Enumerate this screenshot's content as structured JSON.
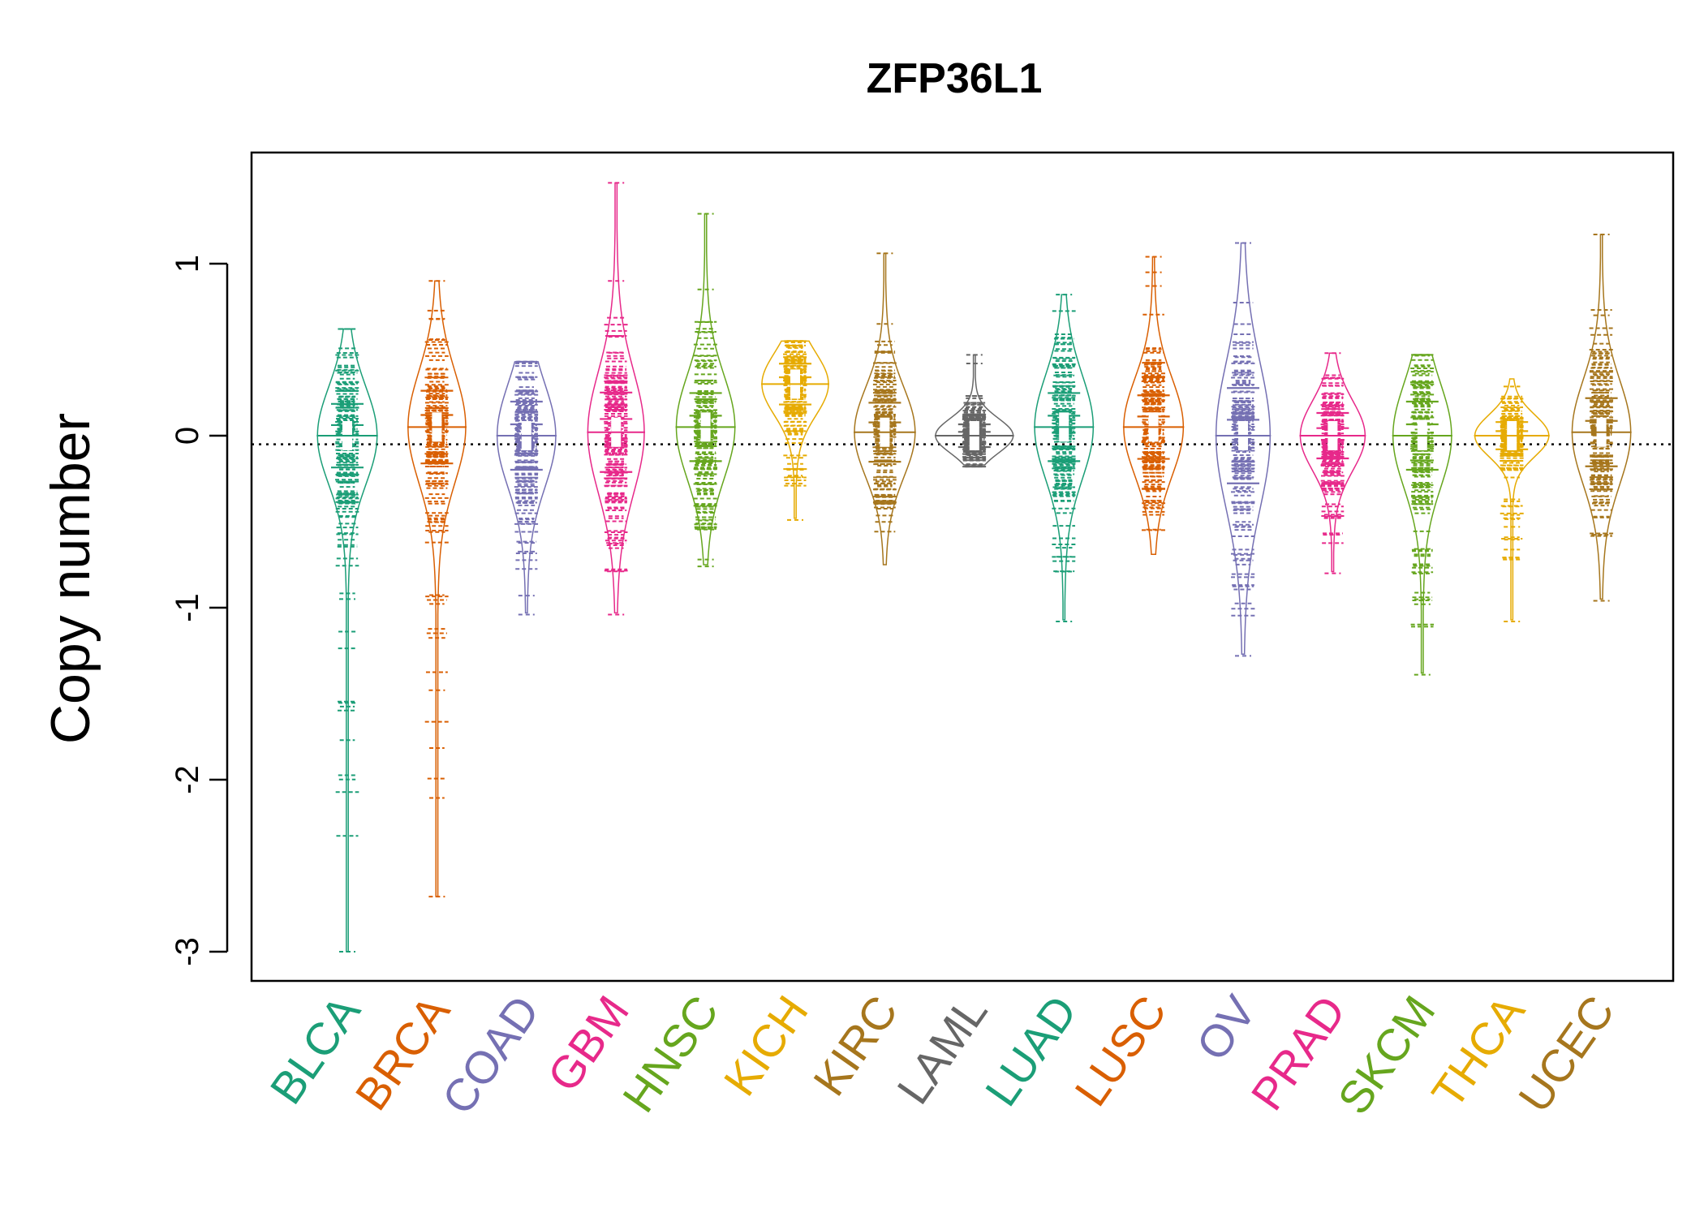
{
  "chart_data": {
    "type": "beanplot",
    "title": "ZFP36L1",
    "xlabel": "",
    "ylabel": "Copy number",
    "ylim": [
      -3.2,
      1.65
    ],
    "yticks": [
      1,
      0,
      -1,
      -2,
      -3
    ],
    "reference_line": -0.05,
    "grid": false,
    "legend": "none",
    "series": [
      {
        "name": "BLCA",
        "color": "#1B9E77",
        "median": 0.0,
        "sd": 0.28,
        "min": -3.0,
        "max": 0.62,
        "outliers": [
          0.62,
          -0.95,
          -3.0
        ]
      },
      {
        "name": "BRCA",
        "color": "#D95F02",
        "median": 0.05,
        "sd": 0.32,
        "min": -2.68,
        "max": 0.9,
        "outliers": [
          0.9,
          0.68,
          -1.48,
          -2.68
        ]
      },
      {
        "name": "COAD",
        "color": "#7570B3",
        "median": 0.0,
        "sd": 0.3,
        "min": -1.04,
        "max": 0.43,
        "outliers": [
          -0.93,
          -1.04
        ]
      },
      {
        "name": "GBM",
        "color": "#E7298A",
        "median": 0.02,
        "sd": 0.35,
        "min": -1.04,
        "max": 1.47,
        "outliers": [
          1.47,
          0.9,
          0.58,
          -1.04
        ]
      },
      {
        "name": "HNSC",
        "color": "#66A61E",
        "median": 0.05,
        "sd": 0.3,
        "min": -0.76,
        "max": 1.29,
        "outliers": [
          1.29,
          0.85,
          -0.72,
          -0.76
        ]
      },
      {
        "name": "KICH",
        "color": "#E6AB02",
        "median": 0.3,
        "sd": 0.18,
        "min": -0.49,
        "max": 0.55,
        "outliers": [
          -0.24,
          -0.49
        ]
      },
      {
        "name": "KIRC",
        "color": "#A6761D",
        "median": 0.02,
        "sd": 0.26,
        "min": -0.76,
        "max": 1.06,
        "outliers": [
          1.06,
          0.65
        ]
      },
      {
        "name": "LAML",
        "color": "#666666",
        "median": 0.0,
        "sd": 0.1,
        "min": -0.18,
        "max": 0.47,
        "outliers": [
          0.47,
          0.42,
          -0.18
        ]
      },
      {
        "name": "LUAD",
        "color": "#1B9E77",
        "median": 0.05,
        "sd": 0.3,
        "min": -1.08,
        "max": 0.82,
        "outliers": [
          0.82,
          -1.08
        ]
      },
      {
        "name": "LUSC",
        "color": "#D95F02",
        "median": 0.05,
        "sd": 0.28,
        "min": -0.7,
        "max": 1.04,
        "outliers": [
          1.04,
          0.95,
          0.87
        ]
      },
      {
        "name": "OV",
        "color": "#7570B3",
        "median": 0.0,
        "sd": 0.42,
        "min": -1.28,
        "max": 1.12,
        "outliers": [
          1.12,
          -1.28
        ]
      },
      {
        "name": "PRAD",
        "color": "#E7298A",
        "median": 0.0,
        "sd": 0.2,
        "min": -0.8,
        "max": 0.48,
        "outliers": [
          0.48,
          -0.8
        ]
      },
      {
        "name": "SKCM",
        "color": "#66A61E",
        "median": 0.0,
        "sd": 0.3,
        "min": -1.39,
        "max": 0.47,
        "outliers": [
          -0.98,
          -1.39
        ]
      },
      {
        "name": "THCA",
        "color": "#E6AB02",
        "median": 0.0,
        "sd": 0.12,
        "min": -1.08,
        "max": 0.33,
        "outliers": [
          -0.37,
          -0.53,
          -1.08
        ]
      },
      {
        "name": "UCEC",
        "color": "#A6761D",
        "median": 0.02,
        "sd": 0.3,
        "min": -0.96,
        "max": 1.17,
        "outliers": [
          1.17,
          0.7,
          -0.96
        ]
      }
    ]
  }
}
